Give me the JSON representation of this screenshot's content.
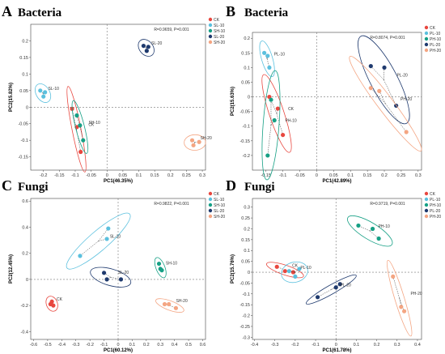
{
  "chart_data": [
    {
      "type": "scatter",
      "panel": "A",
      "title": "Bacteria",
      "xlabel": "PC1(46.35%)",
      "ylabel": "PC2(15.82%)",
      "xlim": [
        -0.24,
        0.31
      ],
      "ylim": [
        -0.19,
        0.25
      ],
      "xticks": [
        "-0.2",
        "-0.15",
        "-0.1",
        "-0.05",
        "0",
        "0.05",
        "0.1",
        "0.15",
        "0.2",
        "0.25",
        "0.3"
      ],
      "yticks": [
        "-0.15",
        "-0.1",
        "-0.05",
        "0",
        "0.05",
        "0.1",
        "0.15",
        "0.2"
      ],
      "stat": "R=0.9659, P=0.001",
      "legend": [
        "CK",
        "SL-10",
        "SH-10",
        "SL-20",
        "SH-20"
      ],
      "series": [
        {
          "name": "CK",
          "label": "CK",
          "color": "#e8473f",
          "x": [
            -0.11,
            -0.095,
            -0.083
          ],
          "y": [
            -0.005,
            -0.06,
            -0.135
          ]
        },
        {
          "name": "SL-10",
          "label": "SL-10",
          "color": "#5bc0de",
          "x": [
            -0.21,
            -0.195,
            -0.2
          ],
          "y": [
            0.05,
            0.045,
            0.032
          ]
        },
        {
          "name": "SH-10",
          "label": "SH-10",
          "color": "#16a085",
          "x": [
            -0.095,
            -0.085,
            -0.075
          ],
          "y": [
            -0.025,
            -0.055,
            -0.1
          ]
        },
        {
          "name": "SL-20",
          "label": "SL-20",
          "color": "#1f3a6e",
          "x": [
            0.115,
            0.13,
            0.125
          ],
          "y": [
            0.185,
            0.182,
            0.17
          ]
        },
        {
          "name": "SH-20",
          "label": "SH-20",
          "color": "#f4a582",
          "x": [
            0.268,
            0.29,
            0.272
          ],
          "y": [
            -0.1,
            -0.105,
            -0.115
          ]
        }
      ]
    },
    {
      "type": "scatter",
      "panel": "B",
      "title": "Bacteria",
      "xlabel": "PC1(42.89%)",
      "ylabel": "PC2(15.63%)",
      "xlim": [
        -0.19,
        0.31
      ],
      "ylim": [
        -0.25,
        0.22
      ],
      "xticks": [
        "-0.15",
        "-0.1",
        "-0.05",
        "0",
        "0.05",
        "0.1",
        "0.15",
        "0.2",
        "0.25",
        "0.3"
      ],
      "yticks": [
        "-0.2",
        "-0.15",
        "-0.1",
        "-0.05",
        "0",
        "0.05",
        "0.1",
        "0.15",
        "0.2"
      ],
      "stat": "R=0.8074, P=0.001",
      "legend": [
        "CK",
        "PL-10",
        "PH-10",
        "PL-20",
        "PH-20"
      ],
      "series": [
        {
          "name": "CK",
          "label": "CK",
          "color": "#e8473f",
          "x": [
            -0.14,
            -0.115,
            -0.1
          ],
          "y": [
            0.0,
            -0.04,
            -0.13
          ]
        },
        {
          "name": "PL-10",
          "label": "PL-10",
          "color": "#5bc0de",
          "x": [
            -0.155,
            -0.145,
            -0.14
          ],
          "y": [
            0.15,
            0.14,
            0.1
          ]
        },
        {
          "name": "PH-10",
          "label": "PH-10",
          "color": "#16a085",
          "x": [
            -0.135,
            -0.125,
            -0.145
          ],
          "y": [
            -0.01,
            -0.08,
            -0.2
          ]
        },
        {
          "name": "PL-20",
          "label": "PL-20",
          "color": "#1f3a6e",
          "x": [
            0.16,
            0.2,
            0.235
          ],
          "y": [
            0.105,
            0.1,
            -0.03
          ]
        },
        {
          "name": "PH-20",
          "label": "PH-20",
          "color": "#f4a582",
          "x": [
            0.16,
            0.185,
            0.265
          ],
          "y": [
            0.03,
            0.02,
            -0.12
          ]
        }
      ]
    },
    {
      "type": "scatter",
      "panel": "C",
      "title": "Fungi",
      "xlabel": "PC1(60.12%)",
      "ylabel": "PC2(12.45%)",
      "xlim": [
        -0.62,
        0.62
      ],
      "ylim": [
        -0.46,
        0.62
      ],
      "xticks": [
        "-0.6",
        "-0.5",
        "-0.4",
        "-0.3",
        "-0.2",
        "-0.1",
        "0",
        "0.1",
        "0.2",
        "0.3",
        "0.4",
        "0.5",
        "0.6"
      ],
      "yticks": [
        "-0.4",
        "-0.2",
        "0",
        "0.2",
        "0.4",
        "0.6"
      ],
      "stat": "R=0.9822, P=0.001",
      "legend": [
        "CK",
        "SL-10",
        "SH-10",
        "SL-20",
        "SH-20"
      ],
      "series": [
        {
          "name": "CK",
          "label": "CK",
          "color": "#e8473f",
          "x": [
            -0.48,
            -0.47,
            -0.46
          ],
          "y": [
            -0.19,
            -0.17,
            -0.2
          ]
        },
        {
          "name": "SL-10",
          "label": "SL-10",
          "color": "#5bc0de",
          "x": [
            -0.27,
            -0.08,
            -0.07
          ],
          "y": [
            0.18,
            0.31,
            0.39
          ]
        },
        {
          "name": "SH-10",
          "label": "SH-10",
          "color": "#16a085",
          "x": [
            0.29,
            0.3,
            0.31
          ],
          "y": [
            0.12,
            0.08,
            0.07
          ]
        },
        {
          "name": "SL-20",
          "label": "SL-20",
          "color": "#1f3a6e",
          "x": [
            -0.1,
            -0.08,
            0.02
          ],
          "y": [
            0.05,
            0.0,
            0.0
          ]
        },
        {
          "name": "SH-20",
          "label": "SH-20",
          "color": "#f4a582",
          "x": [
            0.33,
            0.36,
            0.41
          ],
          "y": [
            -0.19,
            -0.19,
            -0.22
          ]
        }
      ]
    },
    {
      "type": "scatter",
      "panel": "D",
      "title": "Fungi",
      "xlabel": "PC1(61.78%)",
      "ylabel": "PC2(15.76%)",
      "xlim": [
        -0.41,
        0.42
      ],
      "ylim": [
        -0.31,
        0.34
      ],
      "xticks": [
        "-0.4",
        "-0.3",
        "-0.2",
        "-0.1",
        "0",
        "0.1",
        "0.2",
        "0.3",
        "0.4"
      ],
      "yticks": [
        "-0.3",
        "-0.25",
        "-0.2",
        "-0.15",
        "-0.1",
        "-0.05",
        "0",
        "0.05",
        "0.1",
        "0.15",
        "0.2",
        "0.25",
        "0.3"
      ],
      "stat": "R=0.9719, P=0.001",
      "legend": [
        "CK",
        "PL-10",
        "PH-10",
        "PL-20",
        "PH-20"
      ],
      "series": [
        {
          "name": "CK",
          "label": "CK",
          "color": "#e8473f",
          "x": [
            -0.29,
            -0.25,
            -0.21
          ],
          "y": [
            0.025,
            0.005,
            0.0
          ]
        },
        {
          "name": "PL-10",
          "label": "PL-10",
          "color": "#5bc0de",
          "x": [
            -0.23,
            -0.2,
            -0.18
          ],
          "y": [
            0.005,
            -0.02,
            0.015
          ]
        },
        {
          "name": "PH-10",
          "label": "PH-10",
          "color": "#16a085",
          "x": [
            0.11,
            0.18,
            0.21
          ],
          "y": [
            0.215,
            0.2,
            0.155
          ]
        },
        {
          "name": "PL-20",
          "label": "PL-20",
          "color": "#1f3a6e",
          "x": [
            -0.09,
            0.0,
            0.02
          ],
          "y": [
            -0.115,
            -0.07,
            -0.055
          ]
        },
        {
          "name": "PH-20",
          "label": "PH-20",
          "color": "#f4a582",
          "x": [
            0.28,
            0.32,
            0.335
          ],
          "y": [
            -0.02,
            -0.16,
            -0.18
          ]
        }
      ]
    }
  ]
}
